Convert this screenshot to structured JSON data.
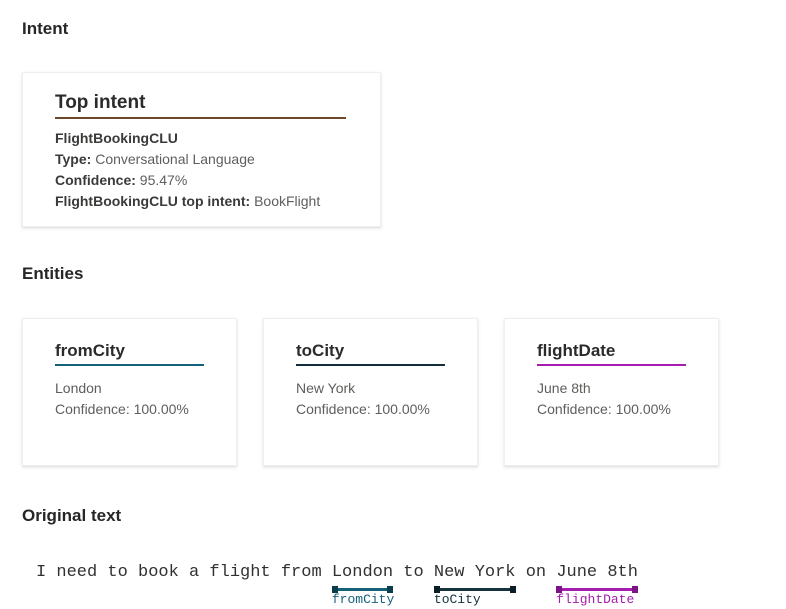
{
  "intent_section": {
    "heading": "Intent",
    "card": {
      "title": "Top intent",
      "underline_color": "#6E482A",
      "name": "FlightBookingCLU",
      "rows": [
        {
          "label": "Type:",
          "value": " Conversational Language"
        },
        {
          "label": "Confidence:",
          "value": " 95.47%"
        },
        {
          "label": "FlightBookingCLU top intent:",
          "value": " BookFlight"
        }
      ]
    }
  },
  "entities_section": {
    "heading": "Entities",
    "cards": [
      {
        "title": "fromCity",
        "underline_color": "#15617A",
        "value": "London",
        "confidence": "Confidence: 100.00%"
      },
      {
        "title": "toCity",
        "underline_color": "#132F3B",
        "value": "New York",
        "confidence": "Confidence: 100.00%"
      },
      {
        "title": "flightDate",
        "underline_color": "#A41DAE",
        "value": "June 8th",
        "confidence": "Confidence: 100.00%"
      }
    ]
  },
  "original_text_section": {
    "heading": "Original text",
    "tokens": [
      {
        "text": "I need to book a flight from "
      },
      {
        "text": "London",
        "label": "fromCity",
        "bar_color": "#15617A",
        "cap_color": "#0C3D4C",
        "label_color": "#15617A"
      },
      {
        "text": " to "
      },
      {
        "text": "New York",
        "label": "toCity",
        "bar_color": "#16323F",
        "cap_color": "#0A1E28",
        "label_color": "#16323F"
      },
      {
        "text": " on "
      },
      {
        "text": "June 8th",
        "label": "flightDate",
        "bar_color": "#A41DAE",
        "cap_color": "#7C1389",
        "label_color": "#A41DAE"
      }
    ]
  }
}
